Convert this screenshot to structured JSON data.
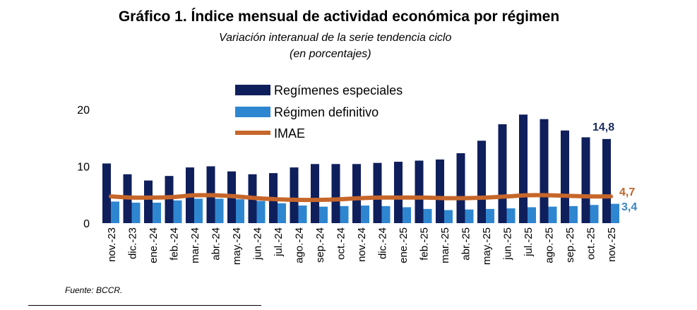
{
  "title": "Gráfico 1. Índice mensual de actividad económica por régimen",
  "subtitle": "Variación interanual de la serie tendencia ciclo",
  "subtitle2": "(en porcentajes)",
  "source": "Fuente:  BCCR.",
  "colors": {
    "especiales": "#0f1f5c",
    "definitivo": "#2f86d0",
    "imae": "#c6662a"
  },
  "chart_data": {
    "type": "bar",
    "categories": [
      "nov.-23",
      "dic.-23",
      "ene.-24",
      "feb.-24",
      "mar.-24",
      "abr.-24",
      "may.-24",
      "jun.-24",
      "jul.-24",
      "ago.-24",
      "sep.-24",
      "oct.-24",
      "nov.-24",
      "dic.-24",
      "ene.-25",
      "feb.-25",
      "mar.-25",
      "abr.-25",
      "may.-25",
      "jun.-25",
      "jul.-25",
      "ago.-25",
      "sep.-25",
      "oct.-25",
      "nov.-25"
    ],
    "series": [
      {
        "name": "Regímenes especiales",
        "type": "bar",
        "values": [
          10.5,
          8.6,
          7.5,
          8.3,
          9.8,
          10.0,
          9.1,
          8.6,
          8.8,
          9.8,
          10.4,
          10.4,
          10.4,
          10.6,
          10.8,
          11.0,
          11.2,
          12.3,
          14.5,
          17.4,
          19.1,
          18.3,
          16.3,
          15.1,
          14.8
        ]
      },
      {
        "name": "Régimen definitivo",
        "type": "bar",
        "values": [
          3.8,
          3.6,
          3.6,
          4.0,
          4.3,
          4.3,
          4.2,
          3.9,
          3.5,
          3.1,
          2.9,
          3.0,
          3.1,
          3.0,
          2.8,
          2.5,
          2.3,
          2.4,
          2.5,
          2.6,
          2.8,
          2.9,
          3.0,
          3.2,
          3.4
        ]
      },
      {
        "name": "IMAE",
        "type": "line",
        "values": [
          4.7,
          4.5,
          4.5,
          4.6,
          4.9,
          4.9,
          4.7,
          4.4,
          4.2,
          4.1,
          4.1,
          4.2,
          4.4,
          4.5,
          4.5,
          4.5,
          4.4,
          4.4,
          4.5,
          4.7,
          4.9,
          4.9,
          4.8,
          4.7,
          4.7
        ]
      }
    ],
    "y_ticks": [
      "0",
      "10",
      "20"
    ],
    "ylim": [
      0,
      20
    ],
    "end_labels": {
      "especiales": "14,8",
      "imae": "4,7",
      "definitivo": "3,4"
    },
    "legend": [
      "Regímenes especiales",
      "Régimen definitivo",
      "IMAE"
    ],
    "legend_position": "top-left",
    "grid": false
  }
}
